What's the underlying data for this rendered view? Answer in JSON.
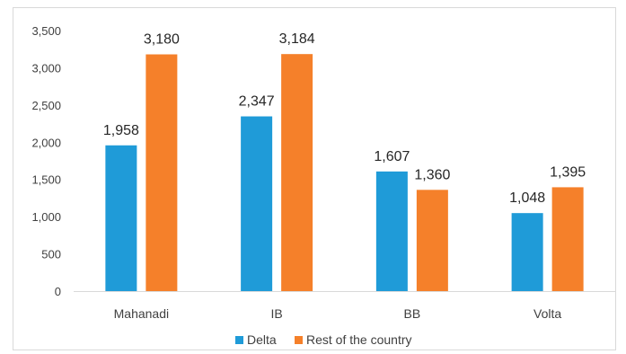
{
  "chart_data": {
    "type": "bar",
    "categories": [
      "Mahanadi",
      "IB",
      "BB",
      "Volta"
    ],
    "series": [
      {
        "name": "Delta",
        "values": [
          1958,
          2347,
          1607,
          1048
        ],
        "labels": [
          "1,958",
          "2,347",
          "1,607",
          "1,048"
        ],
        "color": "#1f9bd8"
      },
      {
        "name": "Rest of the country",
        "values": [
          3180,
          3184,
          1360,
          1395
        ],
        "labels": [
          "3,180",
          "3,184",
          "1,360",
          "1,395"
        ],
        "color": "#f5802a"
      }
    ],
    "ylim": [
      0,
      3500
    ],
    "yticks": [
      0,
      500,
      1000,
      1500,
      2000,
      2500,
      3000,
      3500
    ],
    "ytick_labels": [
      "0",
      "500",
      "1,000",
      "1,500",
      "2,000",
      "2,500",
      "3,000",
      "3,500"
    ],
    "grid": false,
    "legend_position": "bottom"
  }
}
